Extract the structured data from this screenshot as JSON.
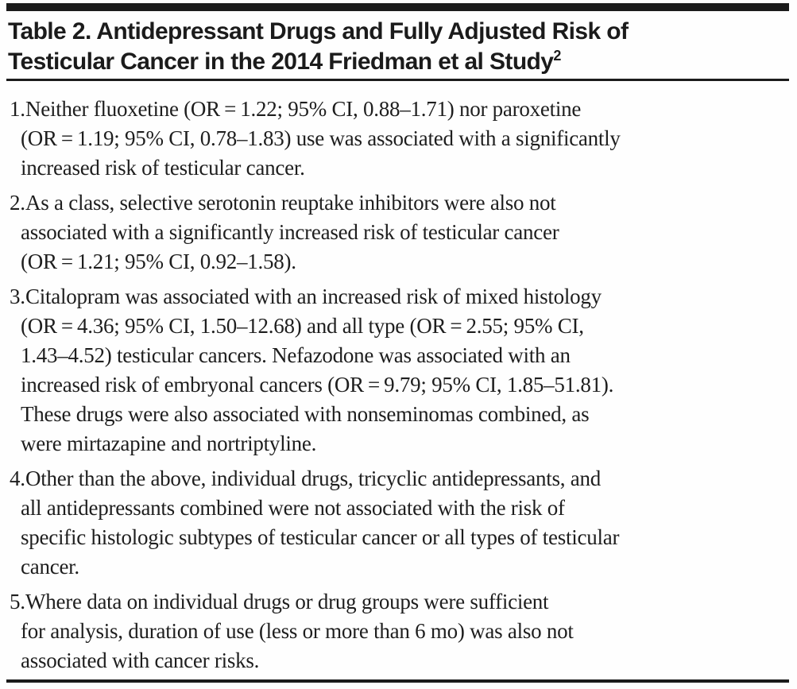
{
  "colors": {
    "rule_black": "#1b1b1b",
    "text": "#1e1e1e",
    "background": "#fefefe"
  },
  "header": {
    "title_line1": "Table 2. Antidepressant Drugs and Fully Adjusted Risk of",
    "title_line2": "Testicular Cancer in the 2014 Friedman et al Study",
    "title_superscript": "2"
  },
  "items": [
    {
      "number": "1.",
      "lines": [
        "Neither fluoxetine (OR = 1.22; 95% CI, 0.88–1.71) nor paroxetine",
        "(OR = 1.19; 95% CI, 0.78–1.83) use was associated with a significantly",
        "increased risk of testicular cancer."
      ]
    },
    {
      "number": "2.",
      "lines": [
        "As a class, selective serotonin reuptake inhibitors were also not",
        "associated with a significantly increased risk of testicular cancer",
        "(OR = 1.21; 95% CI, 0.92–1.58)."
      ]
    },
    {
      "number": "3.",
      "lines": [
        "Citalopram was associated with an increased risk of mixed histology",
        "(OR = 4.36; 95% CI, 1.50–12.68) and all type (OR = 2.55; 95% CI,",
        "1.43–4.52) testicular cancers. Nefazodone was associated with an",
        "increased risk of embryonal cancers (OR = 9.79; 95% CI, 1.85–51.81).",
        "These drugs were also associated with nonseminomas combined, as",
        "were mirtazapine and nortriptyline."
      ]
    },
    {
      "number": "4.",
      "lines": [
        "Other than the above, individual drugs, tricyclic antidepressants, and",
        "all antidepressants combined were not associated with the risk of",
        "specific histologic subtypes of testicular cancer or all types of testicular",
        "cancer."
      ]
    },
    {
      "number": "5.",
      "lines": [
        "Where data on individual drugs or drug groups were sufficient",
        "for analysis, duration of use (less or more than 6 mo) was also not",
        "associated with cancer risks."
      ]
    }
  ]
}
